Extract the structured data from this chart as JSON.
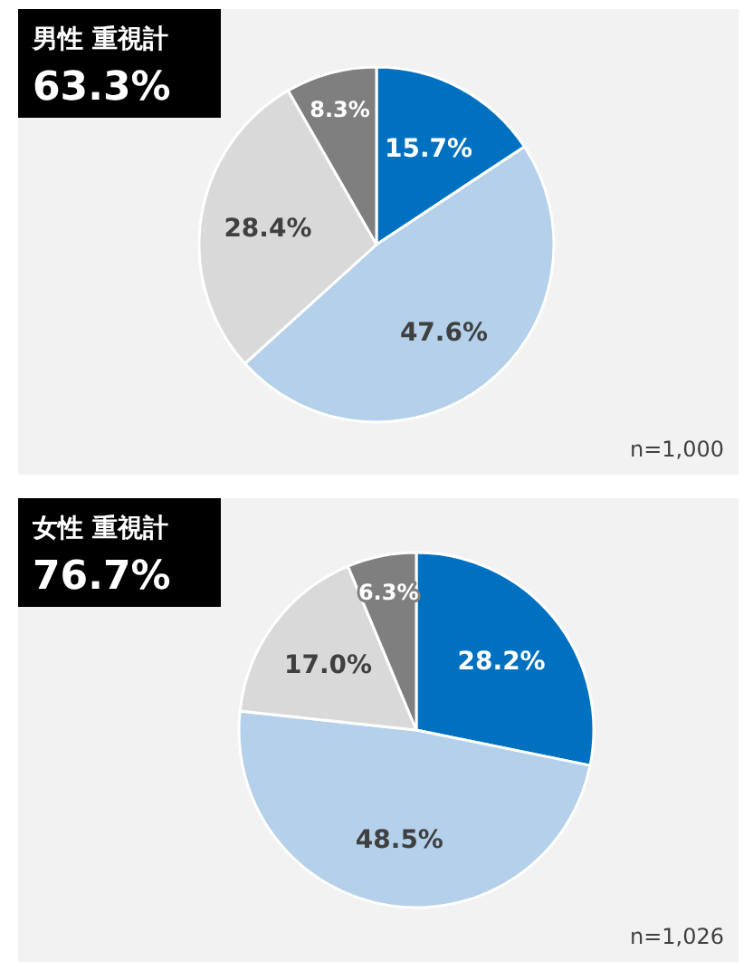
{
  "chart_data": [
    {
      "type": "pie",
      "title": "男性 重視計",
      "subtitle": "63.3%",
      "categories": [
        null,
        null,
        null,
        null
      ],
      "values": [
        15.7,
        47.6,
        28.4,
        8.3
      ],
      "colors": [
        "#0070c0",
        "#b4d0ea",
        "#d9d9d9",
        "#7f7f7f"
      ],
      "value_labels": [
        "15.7%",
        "47.6%",
        "28.4%",
        "8.3%"
      ],
      "annotations": [
        "n=1,000"
      ]
    },
    {
      "type": "pie",
      "title": "女性 重視計",
      "subtitle": "76.7%",
      "categories": [
        null,
        null,
        null,
        null
      ],
      "values": [
        28.2,
        48.5,
        17.0,
        6.3
      ],
      "colors": [
        "#0070c0",
        "#b4d0ea",
        "#d9d9d9",
        "#7f7f7f"
      ],
      "value_labels": [
        "28.2%",
        "48.5%",
        "17.0%",
        "6.3%"
      ],
      "annotations": [
        "n=1,026"
      ]
    }
  ]
}
